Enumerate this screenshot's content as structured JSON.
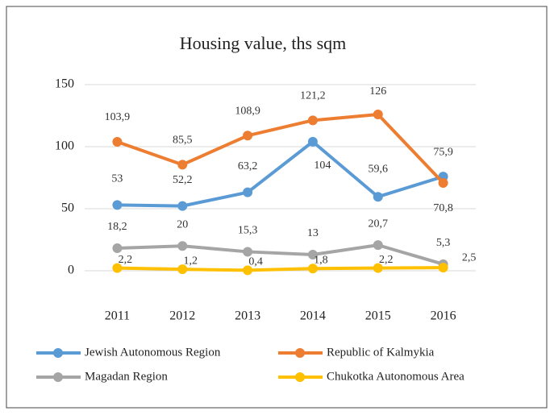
{
  "chart_data": {
    "type": "line",
    "title": "Housing value, ths sqm",
    "categories": [
      "2011",
      "2012",
      "2013",
      "2014",
      "2015",
      "2016"
    ],
    "series": [
      {
        "name": "Jewish Autonomous Region",
        "color": "#5b9bd5",
        "values": [
          53,
          52.2,
          63.2,
          104,
          59.6,
          75.9
        ],
        "value_labels": [
          "53",
          "52,2",
          "63,2",
          "104",
          "59,6",
          "75,9"
        ]
      },
      {
        "name": "Republic of Kalmykia",
        "color": "#ed7d31",
        "values": [
          103.9,
          85.5,
          108.9,
          121.2,
          126,
          70.8
        ],
        "value_labels": [
          "103,9",
          "85,5",
          "108,9",
          "121,2",
          "126",
          "70,8"
        ]
      },
      {
        "name": "Magadan Region",
        "color": "#a5a5a5",
        "values": [
          18.2,
          20,
          15.3,
          13,
          20.7,
          5.3
        ],
        "value_labels": [
          "18,2",
          "20",
          "15,3",
          "13",
          "20,7",
          "5,3"
        ]
      },
      {
        "name": "Chukotka Autonomous Area",
        "color": "#ffc000",
        "values": [
          2.2,
          1.2,
          0.4,
          1.8,
          2.2,
          2.5
        ],
        "value_labels": [
          "2,2",
          "1,2",
          "0,4",
          "1,8",
          "2,2",
          "2,5"
        ]
      }
    ],
    "ylim": [
      0,
      150
    ],
    "yticks": [
      0,
      50,
      100,
      150
    ],
    "grid": true,
    "legend": "bottom"
  }
}
